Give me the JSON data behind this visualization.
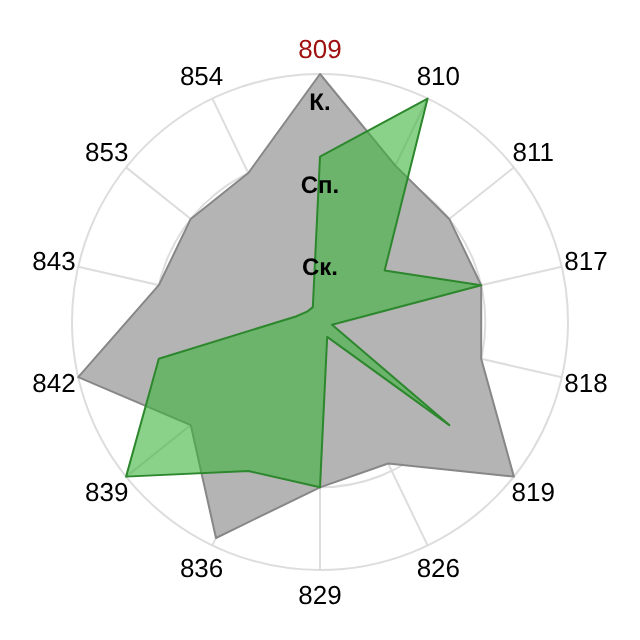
{
  "chart_data": {
    "type": "radar",
    "categories": [
      "809",
      "810",
      "811",
      "817",
      "818",
      "819",
      "826",
      "829",
      "836",
      "839",
      "842",
      "843",
      "853",
      "854"
    ],
    "series": [
      {
        "color": "#b4b4b4",
        "values": [
          3,
          2.1,
          2,
          2,
          2,
          3,
          1.9,
          2,
          2.9,
          2,
          3,
          2,
          2,
          2
        ]
      },
      {
        "color": "#3cb43c",
        "values": [
          2,
          3,
          1,
          2,
          0.15,
          2,
          0.2,
          2,
          2,
          3,
          2,
          0.3,
          0.2,
          0.2
        ]
      }
    ],
    "ylim": [
      0,
      3
    ],
    "yticks": [
      {
        "value": 1,
        "label": "Ск."
      },
      {
        "value": 2,
        "label": "Сп."
      },
      {
        "value": 3,
        "label": "К."
      }
    ],
    "grid": true
  }
}
